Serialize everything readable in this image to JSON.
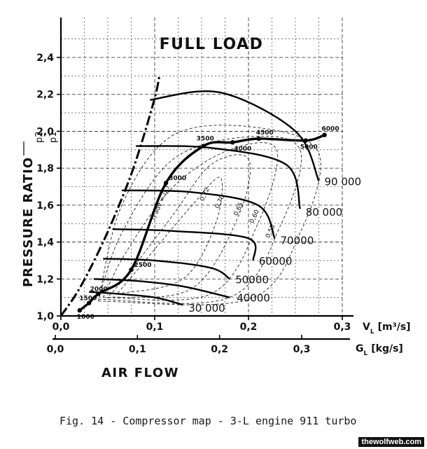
{
  "chart_data": {
    "type": "line",
    "title": "FULL LOAD",
    "ylabel": "PRESSURE RATIO",
    "ylabel_fraction": {
      "num": "p2",
      "den": "p1"
    },
    "xlabel": "AIR FLOW",
    "x_primary": {
      "label": "V",
      "sub": "L",
      "unit": "[m³/s]",
      "lim": [
        0,
        0.3
      ],
      "ticks": [
        0.0,
        0.1,
        0.2,
        0.3
      ],
      "tick_labels": [
        "0,0",
        "0,1",
        "0,2",
        "0,3"
      ]
    },
    "x_secondary": {
      "label": "G",
      "sub": "L",
      "unit": "[kg/s]",
      "lim": [
        0,
        0.3
      ],
      "ticks": [
        0.0,
        0.1,
        0.2,
        0.3
      ],
      "tick_labels": [
        "0,0",
        "0,1",
        "0,2",
        "0,3"
      ]
    },
    "ylim": [
      1.0,
      2.4
    ],
    "yticks": [
      1.0,
      1.2,
      1.4,
      1.6,
      1.8,
      2.0,
      2.2,
      2.4
    ],
    "ytick_labels": [
      "1,0",
      "1,2",
      "1,4",
      "1,6",
      "1,8",
      "2,0",
      "2,2",
      "2,4"
    ],
    "grid": true,
    "surge_line": {
      "x": [
        0.0,
        0.02,
        0.045,
        0.07,
        0.085,
        0.1,
        0.105
      ],
      "y": [
        1.0,
        1.15,
        1.4,
        1.7,
        1.92,
        2.18,
        2.3
      ]
    },
    "speed_lines": [
      {
        "name": "30 000",
        "x": [
          0.03,
          0.06,
          0.1,
          0.13
        ],
        "y": [
          1.13,
          1.12,
          1.1,
          1.06
        ]
      },
      {
        "name": "40000",
        "x": [
          0.035,
          0.08,
          0.13,
          0.18
        ],
        "y": [
          1.2,
          1.19,
          1.16,
          1.1
        ]
      },
      {
        "name": "50000",
        "x": [
          0.045,
          0.1,
          0.16,
          0.18
        ],
        "y": [
          1.31,
          1.3,
          1.26,
          1.2
        ]
      },
      {
        "name": "60000",
        "x": [
          0.055,
          0.12,
          0.2,
          0.205
        ],
        "y": [
          1.47,
          1.46,
          1.42,
          1.3
        ]
      },
      {
        "name": "70000",
        "x": [
          0.065,
          0.14,
          0.21,
          0.228
        ],
        "y": [
          1.68,
          1.67,
          1.6,
          1.42
        ]
      },
      {
        "name": "80 000",
        "x": [
          0.08,
          0.16,
          0.24,
          0.255
        ],
        "y": [
          1.92,
          1.91,
          1.82,
          1.58
        ]
      },
      {
        "name": "90 000",
        "x": [
          0.095,
          0.17,
          0.25,
          0.275
        ],
        "y": [
          2.17,
          2.21,
          2.0,
          1.73
        ]
      }
    ],
    "efficiency_labels": [
      "η adv = 0,7",
      "0,72",
      "0,70",
      "0,65",
      "0,60",
      "0,55"
    ],
    "operating_line": {
      "points": [
        {
          "x": 0.02,
          "y": 1.03,
          "rpm": "1000"
        },
        {
          "x": 0.03,
          "y": 1.07,
          "rpm": "1500"
        },
        {
          "x": 0.04,
          "y": 1.12,
          "rpm": "2000"
        },
        {
          "x": 0.075,
          "y": 1.25,
          "rpm": "2500"
        },
        {
          "x": 0.112,
          "y": 1.72,
          "rpm": "3000"
        },
        {
          "x": 0.152,
          "y": 1.92,
          "rpm": "3500"
        },
        {
          "x": 0.183,
          "y": 1.94,
          "rpm": "4000"
        },
        {
          "x": 0.211,
          "y": 1.96,
          "rpm": "4500"
        },
        {
          "x": 0.261,
          "y": 1.95,
          "rpm": "5000"
        },
        {
          "x": 0.281,
          "y": 1.98,
          "rpm": "6000"
        }
      ]
    }
  },
  "caption": "Fig. 14 - Compressor map - 3-L engine 911 turbo",
  "watermark": "thewolfweb.com"
}
